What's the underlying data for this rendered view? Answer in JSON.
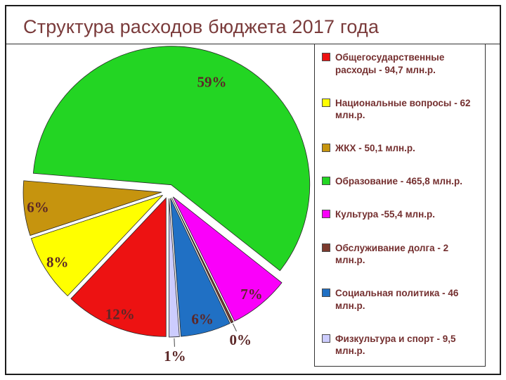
{
  "title": "Структура расходов бюджета 2017 года",
  "colors": {
    "title_text": "#7A3B3B",
    "legend_text": "#742F2F",
    "pie_label_text": "#5B2727",
    "slide_border": "#1C1C1C",
    "legend_border": "#333333",
    "background": "#FFFFFF"
  },
  "chart_data": {
    "type": "pie",
    "title": "Структура расходов бюджета 2017 года",
    "unit": "млн.р.",
    "start_angle_deg": 180,
    "direction": "clockwise",
    "legend_position": "right",
    "exploded": true,
    "slices": [
      {
        "name": "Общегосударственные расходы",
        "legend_label": "Общегосударственные расходы - 94,7 млн.р.",
        "value": 94.7,
        "pct_label": "12%",
        "color": "#ED1212"
      },
      {
        "name": "Национальные вопросы",
        "legend_label": "Национальные вопросы - 62 млн.р.",
        "value": 62,
        "pct_label": "8%",
        "color": "#FFFF00"
      },
      {
        "name": "ЖКХ",
        "legend_label": "ЖКХ - 50,1 млн.р.",
        "value": 50.1,
        "pct_label": "6%",
        "color": "#C6940E"
      },
      {
        "name": "Образование",
        "legend_label": "Образование - 465,8 млн.р.",
        "value": 465.8,
        "pct_label": "59%",
        "color": "#23D523"
      },
      {
        "name": "Культура",
        "legend_label": "Культура -55,4 млн.р.",
        "value": 55.4,
        "pct_label": "7%",
        "color": "#FA00FA"
      },
      {
        "name": "Обслуживание долга",
        "legend_label": "Обслуживание долга - 2 млн.р.",
        "value": 2,
        "pct_label": "0%",
        "color": "#7C3A2D"
      },
      {
        "name": "Социальная политика",
        "legend_label": "Социальная политика - 46 млн.р.",
        "value": 46,
        "pct_label": "6%",
        "color": "#2070C4"
      },
      {
        "name": "Физкультура и спорт",
        "legend_label": "Физкультура и спорт - 9,5 млн.р.",
        "value": 9.5,
        "pct_label": "1%",
        "color": "#CCCCFE"
      }
    ]
  }
}
